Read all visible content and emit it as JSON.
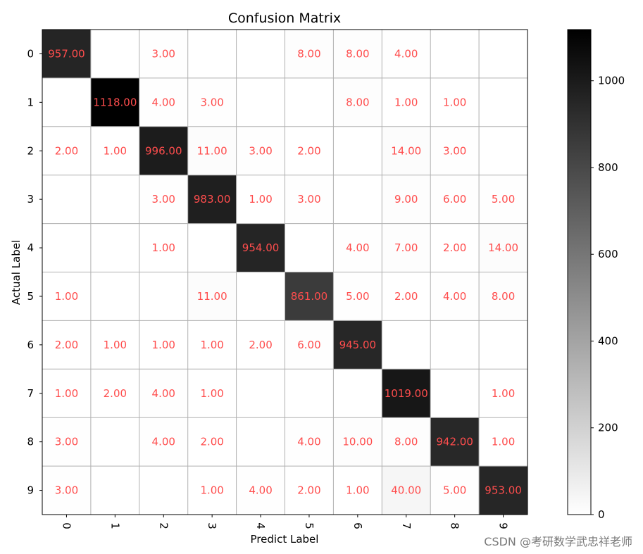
{
  "chart_data": {
    "type": "heatmap",
    "title": "Confusion Matrix",
    "xlabel": "Predict Label",
    "ylabel": "Actual Label",
    "x_categories": [
      "0",
      "1",
      "2",
      "3",
      "4",
      "5",
      "6",
      "7",
      "8",
      "9"
    ],
    "y_categories": [
      "0",
      "1",
      "2",
      "3",
      "4",
      "5",
      "6",
      "7",
      "8",
      "9"
    ],
    "matrix": [
      [
        957,
        0,
        3,
        0,
        0,
        8,
        8,
        4,
        0,
        0
      ],
      [
        0,
        1118,
        4,
        3,
        0,
        0,
        8,
        1,
        1,
        0
      ],
      [
        2,
        1,
        996,
        11,
        3,
        2,
        0,
        14,
        3,
        0
      ],
      [
        0,
        0,
        3,
        983,
        1,
        3,
        0,
        9,
        6,
        5
      ],
      [
        0,
        0,
        1,
        0,
        954,
        0,
        4,
        7,
        2,
        14
      ],
      [
        1,
        0,
        0,
        11,
        0,
        861,
        5,
        2,
        4,
        8
      ],
      [
        2,
        1,
        1,
        1,
        2,
        6,
        945,
        0,
        0,
        0
      ],
      [
        1,
        2,
        4,
        1,
        0,
        0,
        0,
        1019,
        0,
        1
      ],
      [
        3,
        0,
        4,
        2,
        0,
        4,
        10,
        8,
        942,
        1
      ],
      [
        3,
        0,
        0,
        1,
        4,
        2,
        1,
        40,
        5,
        953
      ]
    ],
    "colormap": "binary",
    "value_format": "0.00",
    "colorbar": {
      "min": 0,
      "max": 1118,
      "ticks": [
        0,
        200,
        400,
        600,
        800,
        1000
      ]
    },
    "grid": true
  },
  "colors": {
    "cell_text": "#ff4d4d",
    "grid": "#b0b0b0"
  },
  "watermark": "CSDN @考研数学武忠祥老师"
}
